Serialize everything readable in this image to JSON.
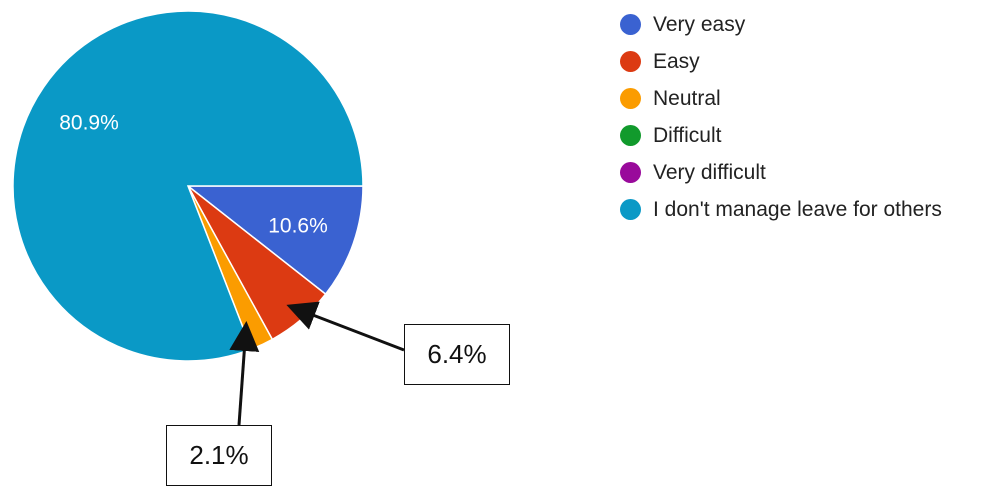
{
  "chart_data": {
    "type": "pie",
    "title": "",
    "slices": [
      {
        "label": "Very easy",
        "value": 10.6,
        "color": "#3a62d1",
        "data_label": "10.6%"
      },
      {
        "label": "Easy",
        "value": 6.4,
        "color": "#dc3a12",
        "data_label": ""
      },
      {
        "label": "Neutral",
        "value": 2.1,
        "color": "#fb9c00",
        "data_label": ""
      },
      {
        "label": "Difficult",
        "value": 0,
        "color": "#119a2c",
        "data_label": ""
      },
      {
        "label": "Very difficult",
        "value": 0,
        "color": "#990a9b",
        "data_label": ""
      },
      {
        "label": "I don't manage leave for others",
        "value": 80.9,
        "color": "#0a99c6",
        "data_label": "80.9%"
      }
    ],
    "legend_position": "right",
    "callouts": [
      {
        "slice": "Easy",
        "text": "6.4%"
      },
      {
        "slice": "Neutral",
        "text": "2.1%"
      }
    ]
  }
}
